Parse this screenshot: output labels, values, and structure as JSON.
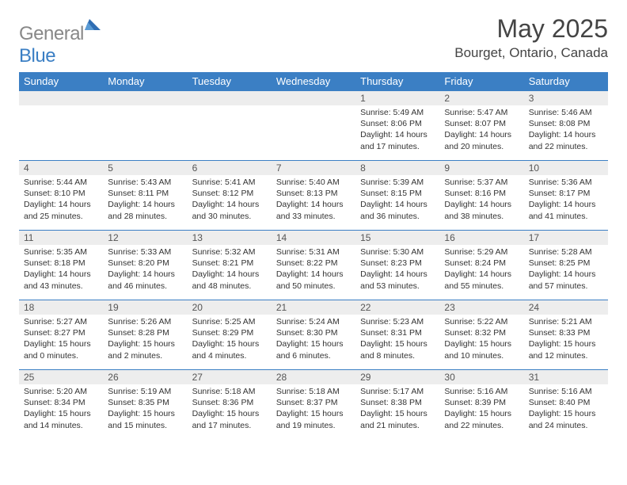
{
  "logo": {
    "text1": "General",
    "text2": "Blue"
  },
  "title": "May 2025",
  "location": "Bourget, Ontario, Canada",
  "weekdays": [
    "Sunday",
    "Monday",
    "Tuesday",
    "Wednesday",
    "Thursday",
    "Friday",
    "Saturday"
  ],
  "colors": {
    "header_bg": "#3b7fc4",
    "daynum_bg": "#ededed",
    "logo_gray": "#888888",
    "logo_blue": "#3b7fc4"
  },
  "weeks": [
    [
      {
        "n": "",
        "sr": "",
        "ss": "",
        "dl": ""
      },
      {
        "n": "",
        "sr": "",
        "ss": "",
        "dl": ""
      },
      {
        "n": "",
        "sr": "",
        "ss": "",
        "dl": ""
      },
      {
        "n": "",
        "sr": "",
        "ss": "",
        "dl": ""
      },
      {
        "n": "1",
        "sr": "Sunrise: 5:49 AM",
        "ss": "Sunset: 8:06 PM",
        "dl": "Daylight: 14 hours and 17 minutes."
      },
      {
        "n": "2",
        "sr": "Sunrise: 5:47 AM",
        "ss": "Sunset: 8:07 PM",
        "dl": "Daylight: 14 hours and 20 minutes."
      },
      {
        "n": "3",
        "sr": "Sunrise: 5:46 AM",
        "ss": "Sunset: 8:08 PM",
        "dl": "Daylight: 14 hours and 22 minutes."
      }
    ],
    [
      {
        "n": "4",
        "sr": "Sunrise: 5:44 AM",
        "ss": "Sunset: 8:10 PM",
        "dl": "Daylight: 14 hours and 25 minutes."
      },
      {
        "n": "5",
        "sr": "Sunrise: 5:43 AM",
        "ss": "Sunset: 8:11 PM",
        "dl": "Daylight: 14 hours and 28 minutes."
      },
      {
        "n": "6",
        "sr": "Sunrise: 5:41 AM",
        "ss": "Sunset: 8:12 PM",
        "dl": "Daylight: 14 hours and 30 minutes."
      },
      {
        "n": "7",
        "sr": "Sunrise: 5:40 AM",
        "ss": "Sunset: 8:13 PM",
        "dl": "Daylight: 14 hours and 33 minutes."
      },
      {
        "n": "8",
        "sr": "Sunrise: 5:39 AM",
        "ss": "Sunset: 8:15 PM",
        "dl": "Daylight: 14 hours and 36 minutes."
      },
      {
        "n": "9",
        "sr": "Sunrise: 5:37 AM",
        "ss": "Sunset: 8:16 PM",
        "dl": "Daylight: 14 hours and 38 minutes."
      },
      {
        "n": "10",
        "sr": "Sunrise: 5:36 AM",
        "ss": "Sunset: 8:17 PM",
        "dl": "Daylight: 14 hours and 41 minutes."
      }
    ],
    [
      {
        "n": "11",
        "sr": "Sunrise: 5:35 AM",
        "ss": "Sunset: 8:18 PM",
        "dl": "Daylight: 14 hours and 43 minutes."
      },
      {
        "n": "12",
        "sr": "Sunrise: 5:33 AM",
        "ss": "Sunset: 8:20 PM",
        "dl": "Daylight: 14 hours and 46 minutes."
      },
      {
        "n": "13",
        "sr": "Sunrise: 5:32 AM",
        "ss": "Sunset: 8:21 PM",
        "dl": "Daylight: 14 hours and 48 minutes."
      },
      {
        "n": "14",
        "sr": "Sunrise: 5:31 AM",
        "ss": "Sunset: 8:22 PM",
        "dl": "Daylight: 14 hours and 50 minutes."
      },
      {
        "n": "15",
        "sr": "Sunrise: 5:30 AM",
        "ss": "Sunset: 8:23 PM",
        "dl": "Daylight: 14 hours and 53 minutes."
      },
      {
        "n": "16",
        "sr": "Sunrise: 5:29 AM",
        "ss": "Sunset: 8:24 PM",
        "dl": "Daylight: 14 hours and 55 minutes."
      },
      {
        "n": "17",
        "sr": "Sunrise: 5:28 AM",
        "ss": "Sunset: 8:25 PM",
        "dl": "Daylight: 14 hours and 57 minutes."
      }
    ],
    [
      {
        "n": "18",
        "sr": "Sunrise: 5:27 AM",
        "ss": "Sunset: 8:27 PM",
        "dl": "Daylight: 15 hours and 0 minutes."
      },
      {
        "n": "19",
        "sr": "Sunrise: 5:26 AM",
        "ss": "Sunset: 8:28 PM",
        "dl": "Daylight: 15 hours and 2 minutes."
      },
      {
        "n": "20",
        "sr": "Sunrise: 5:25 AM",
        "ss": "Sunset: 8:29 PM",
        "dl": "Daylight: 15 hours and 4 minutes."
      },
      {
        "n": "21",
        "sr": "Sunrise: 5:24 AM",
        "ss": "Sunset: 8:30 PM",
        "dl": "Daylight: 15 hours and 6 minutes."
      },
      {
        "n": "22",
        "sr": "Sunrise: 5:23 AM",
        "ss": "Sunset: 8:31 PM",
        "dl": "Daylight: 15 hours and 8 minutes."
      },
      {
        "n": "23",
        "sr": "Sunrise: 5:22 AM",
        "ss": "Sunset: 8:32 PM",
        "dl": "Daylight: 15 hours and 10 minutes."
      },
      {
        "n": "24",
        "sr": "Sunrise: 5:21 AM",
        "ss": "Sunset: 8:33 PM",
        "dl": "Daylight: 15 hours and 12 minutes."
      }
    ],
    [
      {
        "n": "25",
        "sr": "Sunrise: 5:20 AM",
        "ss": "Sunset: 8:34 PM",
        "dl": "Daylight: 15 hours and 14 minutes."
      },
      {
        "n": "26",
        "sr": "Sunrise: 5:19 AM",
        "ss": "Sunset: 8:35 PM",
        "dl": "Daylight: 15 hours and 15 minutes."
      },
      {
        "n": "27",
        "sr": "Sunrise: 5:18 AM",
        "ss": "Sunset: 8:36 PM",
        "dl": "Daylight: 15 hours and 17 minutes."
      },
      {
        "n": "28",
        "sr": "Sunrise: 5:18 AM",
        "ss": "Sunset: 8:37 PM",
        "dl": "Daylight: 15 hours and 19 minutes."
      },
      {
        "n": "29",
        "sr": "Sunrise: 5:17 AM",
        "ss": "Sunset: 8:38 PM",
        "dl": "Daylight: 15 hours and 21 minutes."
      },
      {
        "n": "30",
        "sr": "Sunrise: 5:16 AM",
        "ss": "Sunset: 8:39 PM",
        "dl": "Daylight: 15 hours and 22 minutes."
      },
      {
        "n": "31",
        "sr": "Sunrise: 5:16 AM",
        "ss": "Sunset: 8:40 PM",
        "dl": "Daylight: 15 hours and 24 minutes."
      }
    ]
  ]
}
